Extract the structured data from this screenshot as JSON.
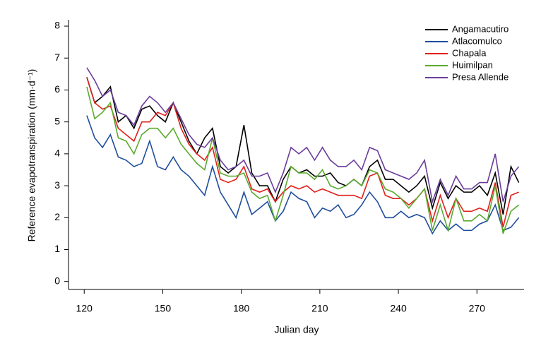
{
  "chart_data": {
    "type": "line",
    "xlabel": "Julian day",
    "ylabel": "Reference evapotranspiration (mm·d⁻¹)",
    "x": [
      121,
      124,
      127,
      130,
      133,
      136,
      139,
      142,
      145,
      148,
      151,
      154,
      157,
      160,
      163,
      166,
      169,
      172,
      175,
      178,
      181,
      184,
      187,
      190,
      193,
      196,
      199,
      202,
      205,
      208,
      211,
      214,
      217,
      220,
      223,
      226,
      229,
      232,
      235,
      238,
      241,
      244,
      247,
      250,
      253,
      256,
      259,
      262,
      265,
      268,
      271,
      274,
      277,
      280,
      283,
      286
    ],
    "series": [
      {
        "name": "Angamacutiro",
        "color": "#000000",
        "values": [
          6.4,
          5.6,
          5.8,
          6.1,
          5.0,
          5.2,
          4.8,
          5.4,
          5.5,
          5.2,
          5.0,
          5.6,
          5.0,
          4.4,
          4.0,
          4.5,
          4.8,
          3.6,
          3.4,
          3.6,
          4.9,
          3.4,
          3.0,
          3.0,
          2.5,
          3.2,
          3.6,
          3.4,
          3.5,
          3.3,
          3.3,
          3.4,
          3.1,
          3.0,
          3.2,
          3.0,
          3.6,
          3.8,
          3.2,
          3.2,
          3.0,
          2.8,
          3.0,
          3.3,
          2.3,
          3.1,
          2.6,
          3.0,
          2.8,
          2.8,
          3.0,
          2.7,
          3.4,
          2.1,
          3.6,
          3.1
        ]
      },
      {
        "name": "Atlacomulco",
        "color": "#1f4e9c",
        "values": [
          5.2,
          4.5,
          4.2,
          4.6,
          3.9,
          3.8,
          3.6,
          3.7,
          4.4,
          3.6,
          3.5,
          3.9,
          3.5,
          3.3,
          3.0,
          2.7,
          3.6,
          2.8,
          2.4,
          2.0,
          2.8,
          2.1,
          2.3,
          2.5,
          1.9,
          2.2,
          2.8,
          2.6,
          2.5,
          2.0,
          2.3,
          2.2,
          2.4,
          2.0,
          2.1,
          2.4,
          2.8,
          2.5,
          2.0,
          2.0,
          2.2,
          2.0,
          2.1,
          2.0,
          1.5,
          1.9,
          1.6,
          1.8,
          1.6,
          1.6,
          1.8,
          1.9,
          2.4,
          1.6,
          1.7,
          2.0
        ]
      },
      {
        "name": "Chapala",
        "color": "#e0201b",
        "values": [
          6.4,
          5.6,
          5.4,
          5.5,
          4.8,
          4.6,
          4.4,
          5.0,
          5.0,
          5.3,
          5.2,
          5.6,
          4.8,
          4.3,
          4.0,
          3.8,
          4.2,
          3.2,
          3.1,
          3.2,
          3.6,
          2.9,
          2.8,
          2.9,
          2.5,
          2.8,
          3.0,
          2.9,
          3.0,
          2.8,
          2.9,
          2.8,
          2.7,
          2.7,
          2.7,
          2.6,
          3.3,
          3.4,
          2.7,
          2.6,
          2.6,
          2.4,
          2.6,
          2.9,
          1.9,
          2.7,
          2.0,
          2.6,
          2.2,
          2.2,
          2.3,
          2.2,
          3.1,
          1.7,
          2.7,
          2.8
        ]
      },
      {
        "name": "Huimilpan",
        "color": "#5aaa2e",
        "values": [
          6.1,
          5.1,
          5.3,
          5.6,
          4.5,
          4.4,
          4.0,
          4.6,
          4.8,
          4.8,
          4.5,
          4.8,
          4.3,
          4.0,
          3.7,
          3.5,
          4.5,
          3.4,
          3.3,
          3.3,
          3.4,
          2.8,
          2.6,
          2.7,
          1.9,
          2.7,
          3.6,
          3.4,
          3.4,
          3.2,
          3.5,
          3.0,
          2.9,
          3.0,
          3.2,
          3.0,
          3.5,
          3.4,
          2.9,
          2.8,
          2.6,
          2.3,
          2.6,
          2.9,
          1.6,
          2.4,
          1.6,
          2.6,
          1.9,
          1.9,
          2.1,
          1.9,
          3.0,
          1.5,
          2.2,
          2.4
        ]
      },
      {
        "name": "Presa Allende",
        "color": "#6a3d9a",
        "values": [
          6.7,
          6.3,
          5.8,
          6.0,
          5.3,
          5.2,
          4.9,
          5.5,
          5.8,
          5.6,
          5.3,
          5.6,
          5.1,
          4.6,
          4.3,
          4.2,
          4.5,
          3.8,
          3.5,
          3.6,
          3.8,
          3.3,
          3.3,
          3.4,
          2.8,
          3.4,
          4.2,
          4.0,
          4.2,
          3.8,
          4.2,
          3.8,
          3.6,
          3.6,
          3.8,
          3.5,
          4.2,
          4.1,
          3.5,
          3.4,
          3.3,
          3.2,
          3.4,
          3.8,
          2.5,
          3.2,
          2.7,
          3.3,
          2.9,
          2.9,
          3.1,
          3.1,
          4.0,
          2.5,
          3.3,
          3.6
        ]
      }
    ],
    "xlim": [
      114,
      288
    ],
    "ylim": [
      -0.25,
      8.2
    ],
    "xticks": [
      120,
      150,
      180,
      210,
      240,
      270
    ],
    "yticks": [
      0,
      1,
      2,
      3,
      4,
      5,
      6,
      7,
      8
    ],
    "legend": "upper right"
  }
}
